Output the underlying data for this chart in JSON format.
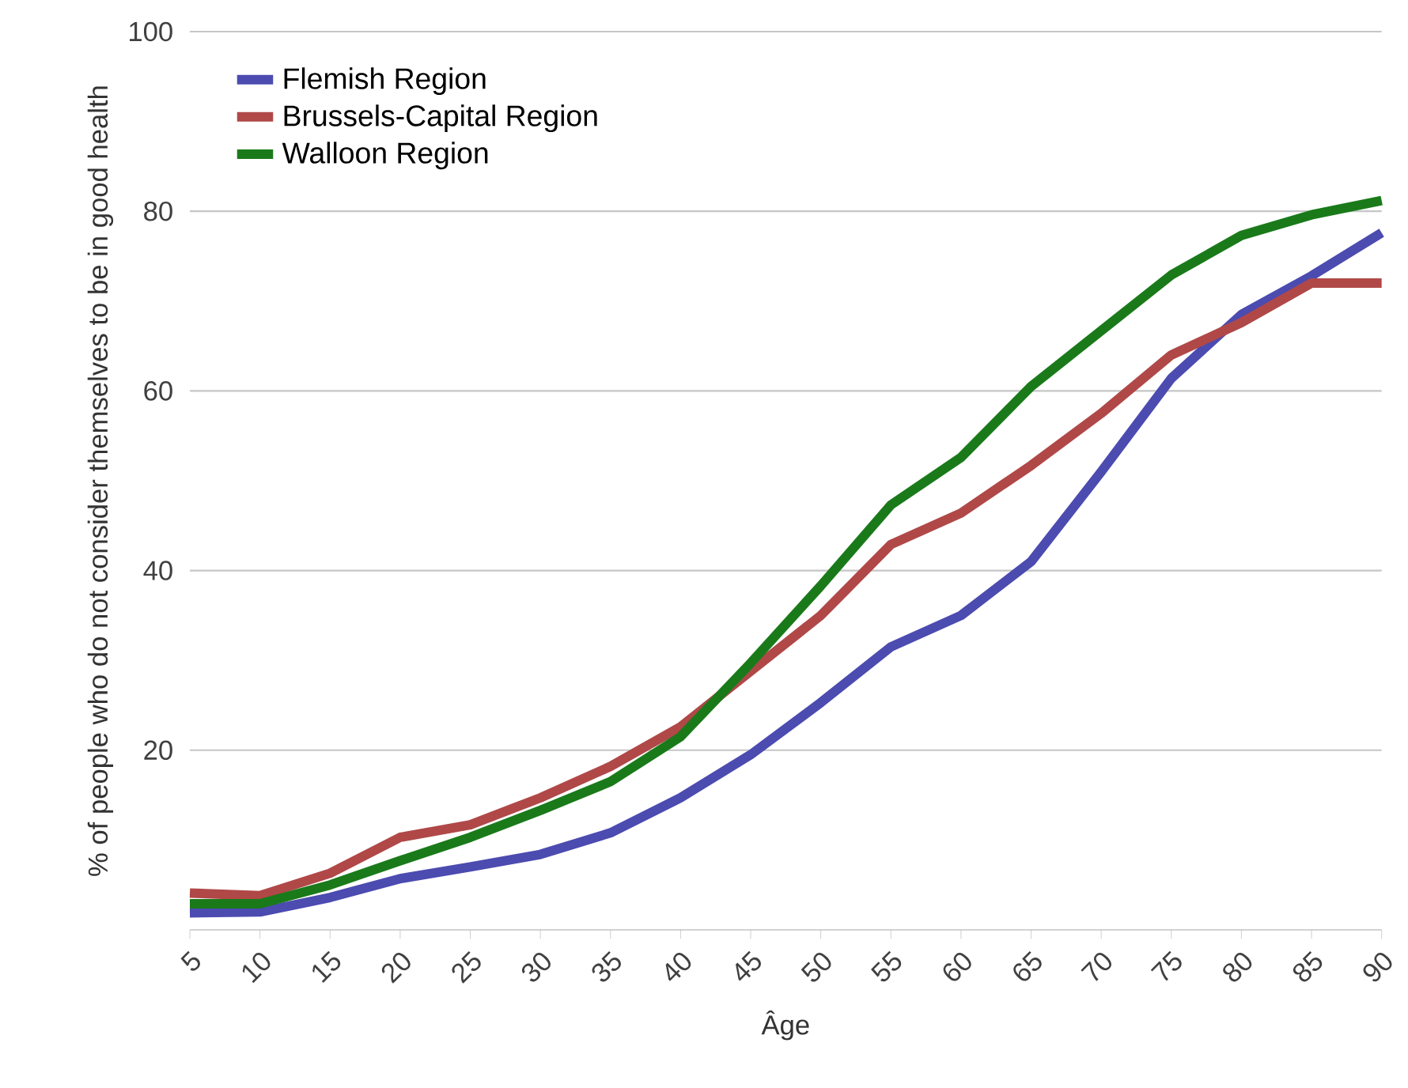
{
  "chart_data": {
    "type": "line",
    "xlabel": "Âge",
    "ylabel": "% of people who do not consider themselves to be in good health",
    "x": [
      5,
      10,
      15,
      20,
      25,
      30,
      35,
      40,
      45,
      50,
      55,
      60,
      65,
      70,
      75,
      80,
      85,
      90
    ],
    "series": [
      {
        "name": "Flemish Region",
        "color": "#4b4bb0",
        "values": [
          1.9,
          2,
          3.6,
          5.7,
          7,
          8.4,
          10.8,
          14.7,
          19.5,
          25.3,
          31.5,
          35,
          41,
          51,
          61.4,
          68.5,
          72.8,
          77.6
        ]
      },
      {
        "name": "Brussels-Capital Region",
        "color": "#b04848",
        "values": [
          4.1,
          3.8,
          6.3,
          10.3,
          11.7,
          14.7,
          18.2,
          22.6,
          28.8,
          35,
          42.9,
          46.4,
          51.7,
          57.5,
          64,
          67.6,
          72,
          72
        ]
      },
      {
        "name": "Walloon Region",
        "color": "#1a7a1a",
        "values": [
          2.9,
          2.9,
          5,
          7.7,
          10.3,
          13.3,
          16.5,
          21.5,
          29.7,
          38.3,
          47.3,
          52.6,
          60.5,
          66.7,
          72.9,
          77.3,
          79.6,
          81.2
        ]
      }
    ],
    "xlim": [
      5,
      90
    ],
    "ylim": [
      0,
      100
    ],
    "xticks": [
      5,
      10,
      15,
      20,
      25,
      30,
      35,
      40,
      45,
      50,
      55,
      60,
      65,
      70,
      75,
      80,
      85,
      90
    ],
    "yticks": [
      20,
      40,
      60,
      80,
      100
    ],
    "grid": "y",
    "legend": "top left",
    "marker": "none",
    "line_style": "solid"
  }
}
